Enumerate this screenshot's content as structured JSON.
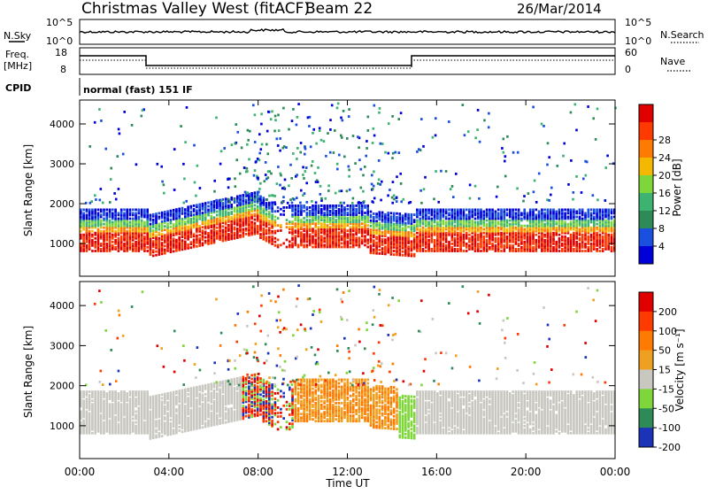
{
  "header": {
    "title": "Christmas Valley West (fitACF)",
    "beam": "Beam 22",
    "date": "26/Mar/2014"
  },
  "top_panels": {
    "nsky_label": "N.Sky",
    "nsky_scale_hi": "10^5",
    "nsky_scale_lo": "10^0",
    "nsearch_label": "N.Search",
    "nsearch_scale_hi": "10^5",
    "nsearch_scale_lo": "10^0",
    "freq_label_line1": "Freq.",
    "freq_label_line2": "[MHz]",
    "freq_ticks": [
      "18",
      "8"
    ],
    "nave_label": "Nave",
    "nave_ticks": [
      "60",
      "0"
    ],
    "cpid_label": "CPID",
    "cpid_value": "normal (fast) 151 IF"
  },
  "chart_data": [
    {
      "type": "heatmap",
      "panel": "power",
      "ylabel": "Slant Range [km]",
      "xlabel": "",
      "x_ticks": [
        "00:00",
        "04:00",
        "08:00",
        "12:00",
        "16:00",
        "20:00",
        "00:00"
      ],
      "x_range_hours": [
        0,
        24
      ],
      "y_ticks": [
        1000,
        2000,
        3000,
        4000
      ],
      "y_range_km": [
        180,
        4600
      ],
      "colorbar_label": "Power [dB]",
      "colorbar_ticks": [
        "28",
        "24",
        "20",
        "16",
        "12",
        "8",
        "4"
      ],
      "colorbar_colors": [
        "#0000d8",
        "#1a4fe0",
        "#2e8b57",
        "#3cb371",
        "#7fd63a",
        "#f5b800",
        "#ff7a00",
        "#ff3a00",
        "#e00000"
      ]
    },
    {
      "type": "heatmap",
      "panel": "velocity",
      "ylabel": "Slant Range [km]",
      "xlabel": "Time UT",
      "x_ticks": [
        "00:00",
        "04:00",
        "08:00",
        "12:00",
        "16:00",
        "20:00",
        "00:00"
      ],
      "x_range_hours": [
        0,
        24
      ],
      "y_ticks": [
        1000,
        2000,
        3000,
        4000
      ],
      "y_range_km": [
        180,
        4600
      ],
      "colorbar_label": "Velocity [m s⁻¹]",
      "colorbar_ticks": [
        "200",
        "100",
        "50",
        "15",
        "-15",
        "-50",
        "-100",
        "-200"
      ],
      "colorbar_colors": [
        "#1a33b8",
        "#2e8b57",
        "#7fd63a",
        "#c8c8c0",
        "#f0a020",
        "#ff7a00",
        "#ff3a00",
        "#e00000"
      ]
    }
  ]
}
